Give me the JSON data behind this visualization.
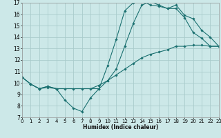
{
  "xlabel": "Humidex (Indice chaleur)",
  "background_color": "#cce8e8",
  "grid_color": "#aacccc",
  "line_color": "#1a7070",
  "xlim": [
    0,
    23
  ],
  "ylim": [
    7,
    17
  ],
  "xticks": [
    0,
    1,
    2,
    3,
    4,
    5,
    6,
    7,
    8,
    9,
    10,
    11,
    12,
    13,
    14,
    15,
    16,
    17,
    18,
    19,
    20,
    21,
    22,
    23
  ],
  "yticks": [
    7,
    8,
    9,
    10,
    11,
    12,
    13,
    14,
    15,
    16,
    17
  ],
  "lines": [
    {
      "x": [
        0,
        1,
        2,
        3,
        4,
        5,
        6,
        7,
        8,
        9,
        10,
        11,
        12,
        13,
        14,
        15,
        16,
        17,
        18,
        19,
        20,
        21,
        22,
        23
      ],
      "y": [
        10.5,
        9.9,
        9.5,
        9.6,
        9.5,
        8.5,
        7.8,
        7.5,
        8.7,
        9.5,
        11.5,
        13.8,
        16.3,
        17.0,
        17.2,
        16.8,
        16.7,
        16.5,
        16.5,
        15.7,
        14.4,
        13.9,
        13.2,
        13.2
      ]
    },
    {
      "x": [
        0,
        1,
        2,
        3,
        4,
        9,
        10,
        11,
        12,
        13,
        14,
        15,
        16,
        17,
        18,
        19,
        20,
        21,
        22,
        23
      ],
      "y": [
        10.5,
        9.9,
        9.5,
        9.7,
        9.5,
        9.5,
        10.2,
        11.2,
        13.2,
        15.2,
        16.8,
        17.1,
        16.8,
        16.5,
        16.8,
        15.9,
        15.6,
        14.6,
        14.0,
        13.2
      ]
    },
    {
      "x": [
        0,
        1,
        2,
        3,
        4,
        5,
        6,
        7,
        8,
        9,
        10,
        11,
        12,
        13,
        14,
        15,
        16,
        17,
        18,
        19,
        20,
        21,
        22,
        23
      ],
      "y": [
        10.5,
        9.9,
        9.5,
        9.7,
        9.5,
        9.5,
        9.5,
        9.5,
        9.5,
        9.8,
        10.2,
        10.7,
        11.2,
        11.7,
        12.2,
        12.5,
        12.7,
        12.9,
        13.2,
        13.2,
        13.3,
        13.3,
        13.2,
        13.2
      ]
    }
  ]
}
